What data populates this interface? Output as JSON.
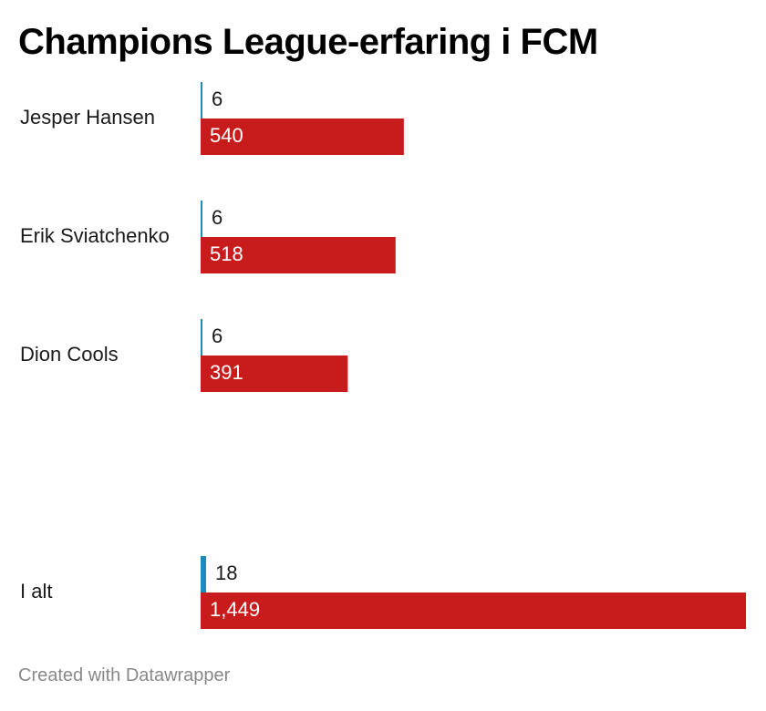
{
  "title": "Champions League-erfaring i FCM",
  "footer": "Created with Datawrapper",
  "colors": {
    "matches": "#1e8bbf",
    "minutes": "#c81c1c"
  },
  "chart_data": {
    "type": "bar",
    "orientation": "horizontal",
    "title": "Champions League-erfaring i FCM",
    "categories": [
      "Jesper Hansen",
      "Erik Sviatchenko",
      "Dion Cools",
      "I alt"
    ],
    "series": [
      {
        "values": [
          6,
          6,
          6,
          18
        ]
      },
      {
        "values": [
          540,
          518,
          391,
          1449
        ],
        "labels": [
          "540",
          "518",
          "391",
          "1,449"
        ]
      }
    ],
    "xlim": [
      0,
      1449
    ],
    "grid": false,
    "legend": "none"
  }
}
